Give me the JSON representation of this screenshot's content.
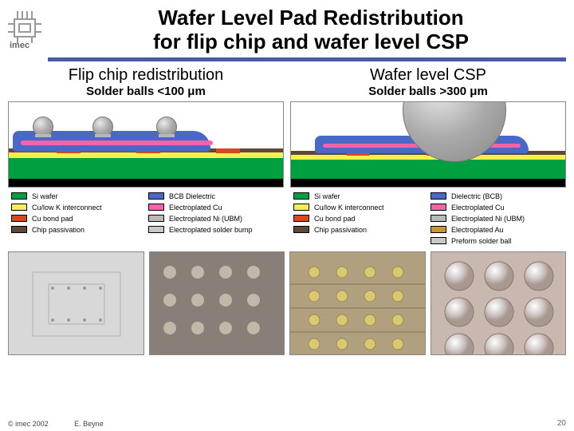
{
  "colors": {
    "si_wafer": "#00a040",
    "bcb": "#4a68c8",
    "cu_lowk": "#f5f050",
    "ep_cu": "#f763a8",
    "cu_pad": "#d84820",
    "ep_ni": "#b8b8b8",
    "passivation": "#604838",
    "ep_au": "#c89830",
    "solder": "#c8c8c8",
    "preform": "#c8c8c8",
    "rule": "#4a5aa8"
  },
  "title_l1": "Wafer Level Pad Redistribution",
  "title_l2": "for flip chip and wafer level CSP",
  "left": {
    "title": "Flip chip redistribution",
    "sub": "Solder balls <100 μm",
    "legend": [
      {
        "c": "si_wafer",
        "t": "Si wafer"
      },
      {
        "c": "bcb",
        "t": "BCB Dielectric"
      },
      {
        "c": "cu_lowk",
        "t": "Cu/low K interconnect"
      },
      {
        "c": "ep_cu",
        "t": "Electroplated Cu"
      },
      {
        "c": "cu_pad",
        "t": "Cu bond pad"
      },
      {
        "c": "ep_ni",
        "t": "Electroplated Ni (UBM)"
      },
      {
        "c": "passivation",
        "t": "Chip passivation"
      },
      {
        "c": "solder",
        "t": "Electroplated solder bump"
      }
    ]
  },
  "right": {
    "title": "Wafer level CSP",
    "sub": "Solder balls >300 μm",
    "legend": [
      {
        "c": "si_wafer",
        "t": "Si wafer"
      },
      {
        "c": "bcb",
        "t": "Dielectric (BCB)"
      },
      {
        "c": "cu_lowk",
        "t": "Cu/low K interconnect"
      },
      {
        "c": "ep_cu",
        "t": "Electroplated Cu"
      },
      {
        "c": "cu_pad",
        "t": "Cu bond pad"
      },
      {
        "c": "ep_ni",
        "t": "Electroplated Ni (UBM)"
      },
      {
        "c": "passivation",
        "t": "Chip passivation"
      },
      {
        "c": "ep_au",
        "t": "Electroplated Au"
      },
      {
        "c": null,
        "t": ""
      },
      {
        "c": "preform",
        "t": "Preform solder ball"
      }
    ]
  },
  "footer_copyright": "© imec 2002",
  "footer_author": "E. Beyne",
  "page_num": "20"
}
